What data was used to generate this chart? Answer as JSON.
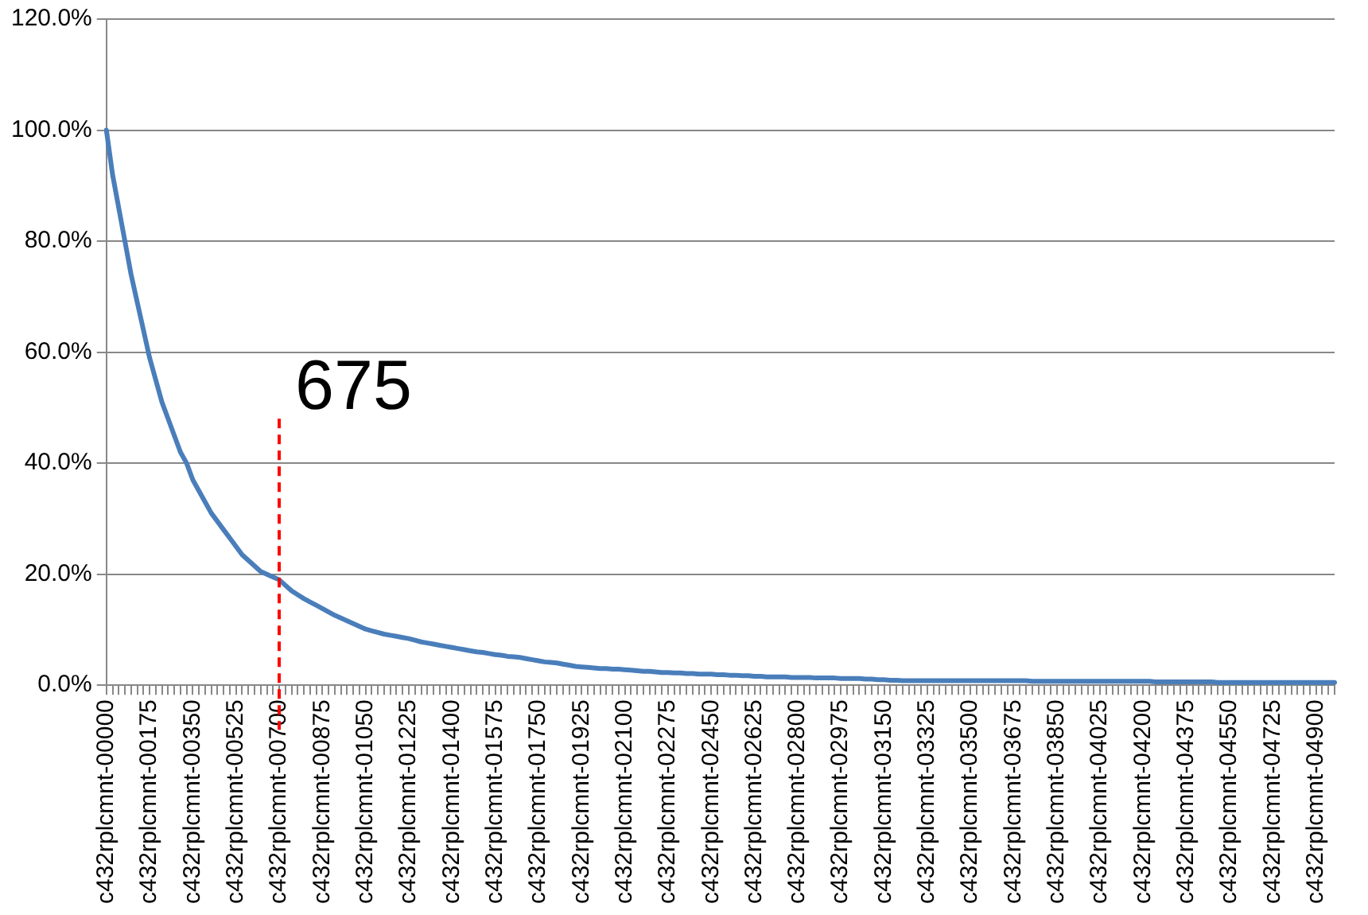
{
  "chart_data": {
    "type": "line",
    "categories": [
      "c432rplcmnt-00000",
      null,
      null,
      null,
      null,
      null,
      null,
      "c432rplcmnt-00175",
      null,
      null,
      null,
      null,
      null,
      null,
      "c432rplcmnt-00350",
      null,
      null,
      null,
      null,
      null,
      null,
      "c432rplcmnt-00525",
      null,
      null,
      null,
      null,
      null,
      null,
      "c432rplcmnt-00700",
      null,
      null,
      null,
      null,
      null,
      null,
      "c432rplcmnt-00875",
      null,
      null,
      null,
      null,
      null,
      null,
      "c432rplcmnt-01050",
      null,
      null,
      null,
      null,
      null,
      null,
      "c432rplcmnt-01225",
      null,
      null,
      null,
      null,
      null,
      null,
      "c432rplcmnt-01400",
      null,
      null,
      null,
      null,
      null,
      null,
      "c432rplcmnt-01575",
      null,
      null,
      null,
      null,
      null,
      null,
      "c432rplcmnt-01750",
      null,
      null,
      null,
      null,
      null,
      null,
      "c432rplcmnt-01925",
      null,
      null,
      null,
      null,
      null,
      null,
      "c432rplcmnt-02100",
      null,
      null,
      null,
      null,
      null,
      null,
      "c432rplcmnt-02275",
      null,
      null,
      null,
      null,
      null,
      null,
      "c432rplcmnt-02450",
      null,
      null,
      null,
      null,
      null,
      null,
      "c432rplcmnt-02625",
      null,
      null,
      null,
      null,
      null,
      null,
      "c432rplcmnt-02800",
      null,
      null,
      null,
      null,
      null,
      null,
      "c432rplcmnt-02975",
      null,
      null,
      null,
      null,
      null,
      null,
      "c432rplcmnt-03150",
      null,
      null,
      null,
      null,
      null,
      null,
      "c432rplcmnt-03325",
      null,
      null,
      null,
      null,
      null,
      null,
      "c432rplcmnt-03500",
      null,
      null,
      null,
      null,
      null,
      null,
      "c432rplcmnt-03675",
      null,
      null,
      null,
      null,
      null,
      null,
      "c432rplcmnt-03850",
      null,
      null,
      null,
      null,
      null,
      null,
      "c432rplcmnt-04025",
      null,
      null,
      null,
      null,
      null,
      null,
      "c432rplcmnt-04200",
      null,
      null,
      null,
      null,
      null,
      null,
      "c432rplcmnt-04375",
      null,
      null,
      null,
      null,
      null,
      null,
      "c432rplcmnt-04550",
      null,
      null,
      null,
      null,
      null,
      null,
      "c432rplcmnt-04725",
      null,
      null,
      null,
      null,
      null,
      null,
      "c432rplcmnt-04900",
      null,
      null,
      null
    ],
    "series": [
      {
        "color": "#4a7ebb",
        "values": [
          100,
          92,
          86,
          80,
          74,
          69,
          64,
          59,
          55,
          51,
          48,
          45,
          42,
          40,
          37,
          35,
          33,
          31,
          29.5,
          28,
          26.5,
          25,
          23.5,
          22.5,
          21.5,
          20.5,
          20,
          19.5,
          19,
          18,
          17,
          16.3,
          15.6,
          15,
          14.4,
          13.8,
          13.2,
          12.6,
          12.1,
          11.6,
          11.1,
          10.6,
          10.1,
          9.8,
          9.5,
          9.2,
          9,
          8.8,
          8.6,
          8.4,
          8.1,
          7.8,
          7.6,
          7.4,
          7.2,
          7,
          6.8,
          6.6,
          6.4,
          6.2,
          6,
          5.9,
          5.7,
          5.5,
          5.4,
          5.2,
          5.1,
          5,
          4.8,
          4.6,
          4.4,
          4.2,
          4.1,
          4,
          3.8,
          3.6,
          3.4,
          3.3,
          3.2,
          3.1,
          3,
          3,
          2.9,
          2.9,
          2.8,
          2.7,
          2.6,
          2.5,
          2.5,
          2.4,
          2.3,
          2.3,
          2.2,
          2.2,
          2.1,
          2.1,
          2,
          2,
          2,
          1.9,
          1.9,
          1.8,
          1.8,
          1.7,
          1.7,
          1.6,
          1.6,
          1.5,
          1.5,
          1.5,
          1.5,
          1.4,
          1.4,
          1.4,
          1.4,
          1.3,
          1.3,
          1.3,
          1.3,
          1.2,
          1.2,
          1.2,
          1.2,
          1.1,
          1.1,
          1,
          1,
          0.9,
          0.9,
          0.8,
          0.8,
          0.8,
          0.8,
          0.8,
          0.8,
          0.8,
          0.8,
          0.8,
          0.8,
          0.8,
          0.8,
          0.8,
          0.8,
          0.8,
          0.8,
          0.8,
          0.8,
          0.8,
          0.8,
          0.8,
          0.7,
          0.7,
          0.7,
          0.7,
          0.7,
          0.7,
          0.7,
          0.7,
          0.7,
          0.7,
          0.7,
          0.7,
          0.7,
          0.7,
          0.7,
          0.7,
          0.7,
          0.7,
          0.7,
          0.7,
          0.6,
          0.6,
          0.6,
          0.6,
          0.6,
          0.6,
          0.6,
          0.6,
          0.6,
          0.6,
          0.5,
          0.5,
          0.5,
          0.5,
          0.5,
          0.5,
          0.5,
          0.5,
          0.5,
          0.5,
          0.5,
          0.5,
          0.5,
          0.5,
          0.5,
          0.5,
          0.5,
          0.5,
          0.5,
          0.5
        ]
      }
    ],
    "ylim": [
      0,
      120
    ],
    "yticks": [
      {
        "value": 0,
        "label": "0.0%"
      },
      {
        "value": 20,
        "label": "20.0%"
      },
      {
        "value": 40,
        "label": "40.0%"
      },
      {
        "value": 60,
        "label": "60.0%"
      },
      {
        "value": 80,
        "label": "80.0%"
      },
      {
        "value": 100,
        "label": "100.0%"
      },
      {
        "value": 120,
        "label": "120.0%"
      }
    ],
    "grid": "y",
    "legend": false,
    "marker": "none",
    "line_style": "solid",
    "ref_lines": [
      {
        "axis": "x",
        "value": "c432rplcmnt-00700",
        "label": "675",
        "color": "#ff0000",
        "line_style": "dashed"
      }
    ]
  }
}
